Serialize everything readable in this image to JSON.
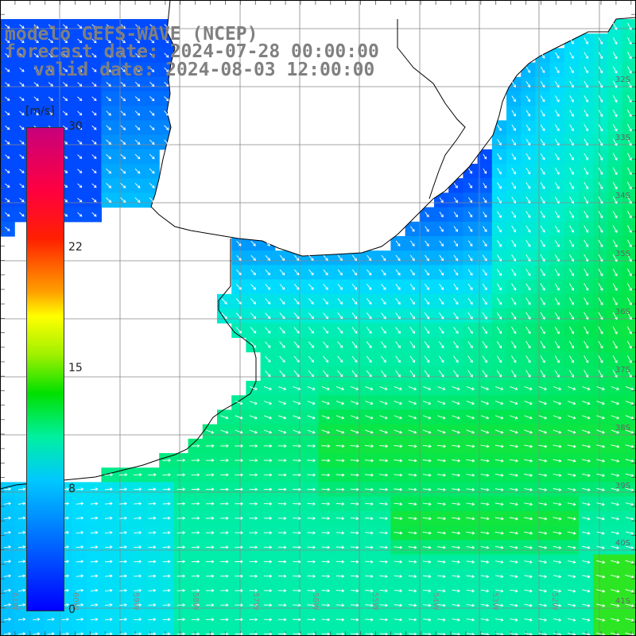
{
  "title": {
    "line1": "modelo GEFS-WAVE (NCEP)",
    "line2": "forecast date: 2024-07-28 00:00:00",
    "line3": "valid date: 2024-08-03 12:00:00"
  },
  "colorbar": {
    "unit": "[m/s]",
    "ticks": [
      "30",
      "22",
      "15",
      "8",
      "0"
    ],
    "tick_values": [
      30,
      22,
      15,
      8,
      0
    ],
    "range": [
      0,
      30
    ],
    "colors": [
      "#0000ff",
      "#00c8ff",
      "#00f0a0",
      "#00e000",
      "#a0f000",
      "#ffff00",
      "#ffa000",
      "#ff2000",
      "#c8007c"
    ]
  },
  "map": {
    "latitude_labels": [
      "32S",
      "33S",
      "34S",
      "35S",
      "36S",
      "37S",
      "38S",
      "39S",
      "40S",
      "41S"
    ],
    "longitude_labels": [
      "61W",
      "60W",
      "59W",
      "58W",
      "57W",
      "56W",
      "55W",
      "54W",
      "53W",
      "52W"
    ],
    "land_color": "#ffffff",
    "grid_color": "#888888",
    "coast_color": "#000000",
    "arrow_color": "#ffffff"
  }
}
